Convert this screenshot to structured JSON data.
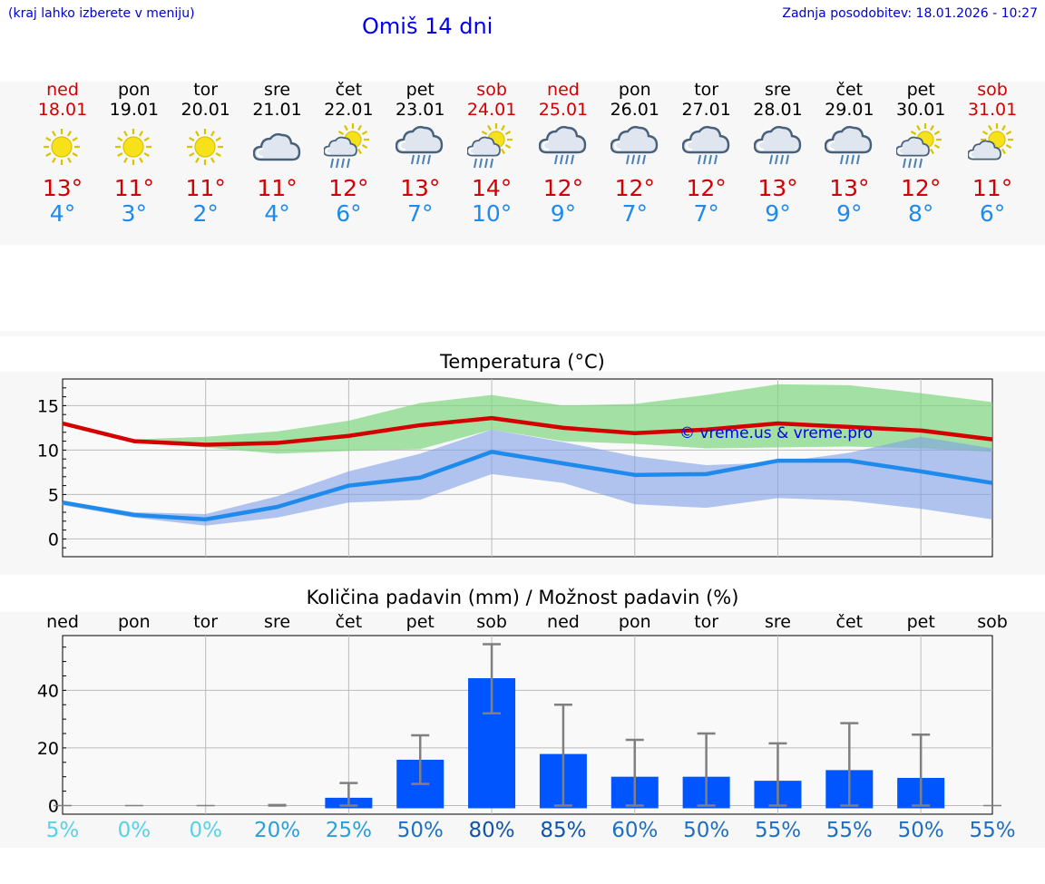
{
  "header": {
    "hint": "(kraj lahko izberete v meniju)",
    "title": "Omiš 14 dni",
    "updated": "Zadnja posodobitev: 18.01.2026 - 10:27"
  },
  "colors": {
    "tmax": "#d40000",
    "tmin": "#1e8bec",
    "bar": "#0055ff",
    "band_max": "#7fd67f",
    "band_min": "#7f9fe8"
  },
  "days": [
    {
      "name": "ned",
      "date": "18.01",
      "weekend": true,
      "icon": "sun-icon",
      "tmax": "13°",
      "tmin": "4°"
    },
    {
      "name": "pon",
      "date": "19.01",
      "weekend": false,
      "icon": "sun-icon",
      "tmax": "11°",
      "tmin": "3°"
    },
    {
      "name": "tor",
      "date": "20.01",
      "weekend": false,
      "icon": "sun-icon",
      "tmax": "11°",
      "tmin": "2°"
    },
    {
      "name": "sre",
      "date": "21.01",
      "weekend": false,
      "icon": "cloud-icon",
      "tmax": "11°",
      "tmin": "4°"
    },
    {
      "name": "čet",
      "date": "22.01",
      "weekend": false,
      "icon": "sun-cloud-rain-icon",
      "tmax": "12°",
      "tmin": "6°"
    },
    {
      "name": "pet",
      "date": "23.01",
      "weekend": false,
      "icon": "cloud-rain-icon",
      "tmax": "13°",
      "tmin": "7°"
    },
    {
      "name": "sob",
      "date": "24.01",
      "weekend": true,
      "icon": "sun-cloud-rain-icon",
      "tmax": "14°",
      "tmin": "10°"
    },
    {
      "name": "ned",
      "date": "25.01",
      "weekend": true,
      "icon": "cloud-rain-icon",
      "tmax": "12°",
      "tmin": "9°"
    },
    {
      "name": "pon",
      "date": "26.01",
      "weekend": false,
      "icon": "cloud-rain-icon",
      "tmax": "12°",
      "tmin": "7°"
    },
    {
      "name": "tor",
      "date": "27.01",
      "weekend": false,
      "icon": "cloud-rain-icon",
      "tmax": "12°",
      "tmin": "7°"
    },
    {
      "name": "sre",
      "date": "28.01",
      "weekend": false,
      "icon": "cloud-rain-icon",
      "tmax": "13°",
      "tmin": "9°"
    },
    {
      "name": "čet",
      "date": "29.01",
      "weekend": false,
      "icon": "cloud-rain-icon",
      "tmax": "13°",
      "tmin": "9°"
    },
    {
      "name": "pet",
      "date": "30.01",
      "weekend": false,
      "icon": "sun-cloud-rain-icon",
      "tmax": "12°",
      "tmin": "8°"
    },
    {
      "name": "sob",
      "date": "31.01",
      "weekend": true,
      "icon": "sun-cloud-icon",
      "tmax": "11°",
      "tmin": "6°"
    }
  ],
  "watermark": "© vreme.us & vreme.pro",
  "chart_data": [
    {
      "type": "line",
      "title": "Temperatura (°C)",
      "x": [
        0,
        1,
        2,
        3,
        4,
        5,
        6,
        7,
        8,
        9,
        10,
        11,
        12,
        13
      ],
      "ylim": [
        -2,
        18
      ],
      "yticks": [
        0,
        5,
        10,
        15
      ],
      "ytick_labels": [
        "0",
        "5",
        "10",
        "15"
      ],
      "series": [
        {
          "name": "max",
          "values": [
            13.0,
            11.0,
            10.6,
            10.8,
            11.6,
            12.8,
            13.6,
            12.5,
            11.9,
            12.3,
            13.0,
            12.6,
            12.2,
            11.2
          ]
        },
        {
          "name": "min",
          "values": [
            4.1,
            2.7,
            2.2,
            3.6,
            6.0,
            6.9,
            9.8,
            8.5,
            7.2,
            7.3,
            8.8,
            8.8,
            7.6,
            6.3
          ]
        }
      ],
      "bands": [
        {
          "name": "max_range",
          "low": [
            12.8,
            10.9,
            10.3,
            9.6,
            9.9,
            10.1,
            12.3,
            11.0,
            10.7,
            10.2,
            10.3,
            10.4,
            10.2,
            9.8
          ],
          "high": [
            13.2,
            11.2,
            11.5,
            12.1,
            13.3,
            15.3,
            16.2,
            15.0,
            15.2,
            16.2,
            17.4,
            17.3,
            16.4,
            15.4
          ]
        },
        {
          "name": "min_range",
          "low": [
            3.8,
            2.4,
            1.5,
            2.4,
            4.1,
            4.4,
            7.3,
            6.3,
            3.9,
            3.5,
            4.6,
            4.3,
            3.4,
            2.2
          ],
          "high": [
            4.3,
            3.0,
            2.8,
            4.8,
            7.6,
            9.6,
            12.3,
            10.9,
            9.3,
            8.3,
            8.6,
            9.7,
            11.5,
            10.2
          ]
        }
      ]
    },
    {
      "type": "bar",
      "title": "Količina padavin (mm) / Možnost padavin (%)",
      "categories": [
        "ned",
        "pon",
        "tor",
        "sre",
        "čet",
        "pet",
        "sob",
        "ned",
        "pon",
        "tor",
        "sre",
        "čet",
        "pet",
        "sob"
      ],
      "values": [
        0,
        0,
        0,
        0,
        2.7,
        15.9,
        44.2,
        17.9,
        10.0,
        10.0,
        8.6,
        12.3,
        9.6,
        0
      ],
      "error_low": [
        0,
        0,
        0,
        0,
        0,
        7.5,
        32.0,
        0,
        0,
        0,
        0,
        0,
        0,
        0
      ],
      "error_high": [
        0,
        0,
        0,
        0.2,
        7.8,
        24.4,
        56.0,
        35.0,
        22.8,
        25.0,
        21.6,
        28.6,
        24.6,
        0
      ],
      "ylim": [
        -3,
        59
      ],
      "yticks": [
        0,
        20,
        40
      ],
      "ytick_labels": [
        "0",
        "20",
        "40"
      ],
      "probability": [
        "5%",
        "0%",
        "0%",
        "20%",
        "25%",
        "50%",
        "80%",
        "85%",
        "60%",
        "50%",
        "55%",
        "55%",
        "50%",
        "55%"
      ],
      "probability_values": [
        5,
        0,
        0,
        20,
        25,
        50,
        80,
        85,
        60,
        50,
        55,
        55,
        50,
        55
      ]
    }
  ]
}
